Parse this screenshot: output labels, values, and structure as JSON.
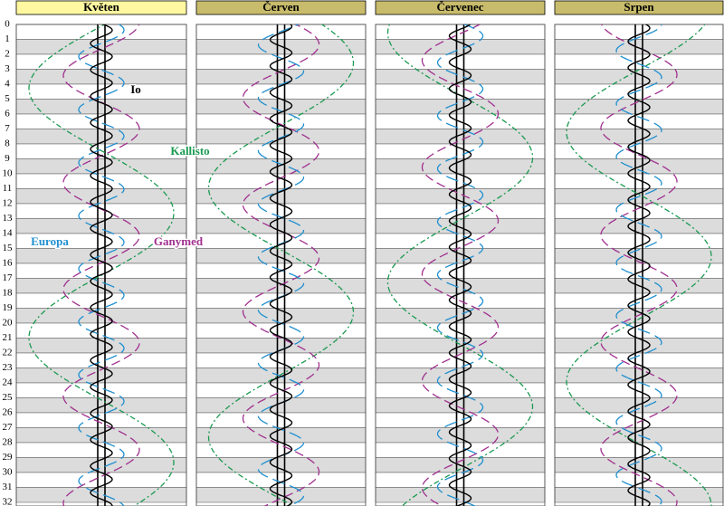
{
  "panels": [
    {
      "title": "Květen"
    },
    {
      "title": "Červen"
    },
    {
      "title": "Červenec"
    },
    {
      "title": "Srpen"
    }
  ],
  "days": [
    0,
    1,
    2,
    3,
    4,
    5,
    6,
    7,
    8,
    9,
    10,
    11,
    12,
    13,
    14,
    15,
    16,
    17,
    18,
    19,
    20,
    21,
    22,
    23,
    24,
    25,
    26,
    27,
    28,
    29,
    30,
    31,
    32
  ],
  "moon_labels": [
    {
      "text": "Io"
    },
    {
      "text": "Kallisto"
    },
    {
      "text": "Europa"
    },
    {
      "text": "Ganymed"
    }
  ]
}
